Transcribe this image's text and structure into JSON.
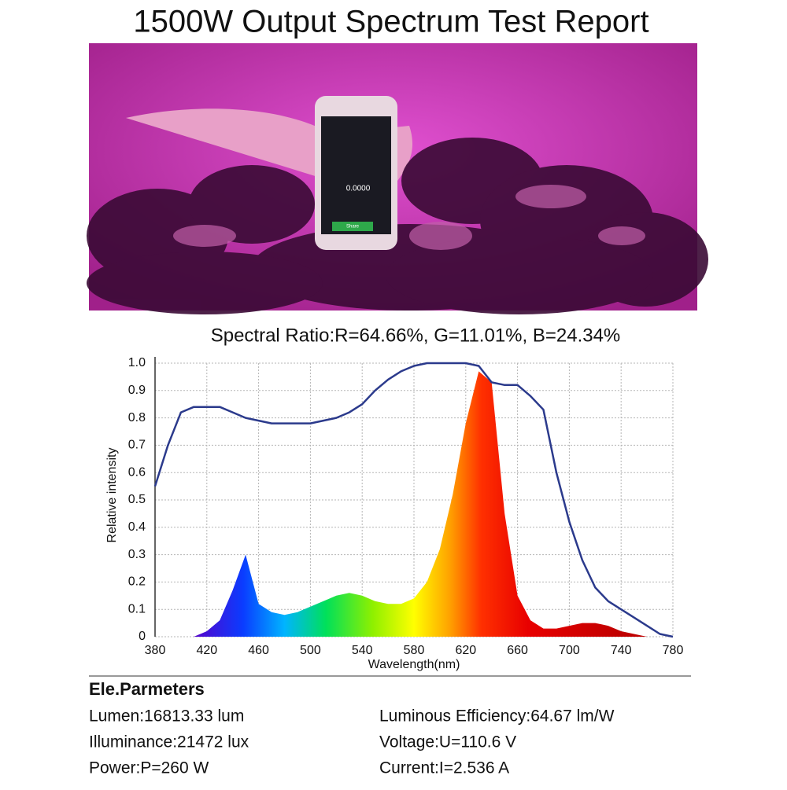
{
  "header": {
    "title": "1500W Output Spectrum Test Report"
  },
  "photo": {
    "phone_reading": "0.0000",
    "phone_button": "Share"
  },
  "chart_data": {
    "type": "line",
    "title": "Spectral Ratio:R=64.66%, G=11.01%, B=24.34%",
    "x_label": "Wavelength(nm)",
    "y_label": "Relative intensity",
    "x": [
      380,
      390,
      400,
      410,
      420,
      430,
      440,
      450,
      460,
      470,
      480,
      490,
      500,
      510,
      520,
      530,
      540,
      550,
      560,
      570,
      580,
      590,
      600,
      610,
      620,
      630,
      640,
      650,
      660,
      670,
      680,
      690,
      700,
      710,
      720,
      730,
      740,
      750,
      760,
      770,
      780
    ],
    "series": [
      {
        "type": "area",
        "values": [
          0,
          0,
          0,
          0,
          0.02,
          0.06,
          0.17,
          0.3,
          0.12,
          0.09,
          0.08,
          0.09,
          0.11,
          0.13,
          0.15,
          0.16,
          0.15,
          0.13,
          0.12,
          0.12,
          0.14,
          0.2,
          0.32,
          0.52,
          0.78,
          0.97,
          0.93,
          0.45,
          0.15,
          0.06,
          0.03,
          0.03,
          0.04,
          0.05,
          0.05,
          0.04,
          0.02,
          0.01,
          0,
          0,
          0
        ]
      },
      {
        "type": "line",
        "color": "#2b3a8c",
        "values": [
          0.55,
          0.7,
          0.82,
          0.84,
          0.84,
          0.84,
          0.82,
          0.8,
          0.79,
          0.78,
          0.78,
          0.78,
          0.78,
          0.79,
          0.8,
          0.82,
          0.85,
          0.9,
          0.94,
          0.97,
          0.99,
          1,
          1,
          1,
          1,
          0.99,
          0.93,
          0.92,
          0.92,
          0.88,
          0.83,
          0.6,
          0.42,
          0.28,
          0.18,
          0.13,
          0.1,
          0.07,
          0.04,
          0.01,
          0
        ]
      }
    ],
    "xlim": [
      380,
      780
    ],
    "xticks": [
      380,
      420,
      460,
      500,
      540,
      580,
      620,
      660,
      700,
      740,
      780
    ],
    "ylim": [
      0,
      1
    ],
    "yticks": [
      0,
      0.1,
      0.2,
      0.3,
      0.4,
      0.5,
      0.6,
      0.7,
      0.8,
      0.9,
      {
        "value": 1,
        "label": "1.0"
      }
    ],
    "grid": true
  },
  "parameters": {
    "heading": "Ele.Parmeters",
    "left": [
      "Lumen:16813.33 lum",
      "Illuminance:21472 lux",
      "Power:P=260 W"
    ],
    "right": [
      "Luminous Efficiency:64.67 lm/W",
      "Voltage:U=110.6 V",
      "Current:I=2.536 A"
    ]
  }
}
